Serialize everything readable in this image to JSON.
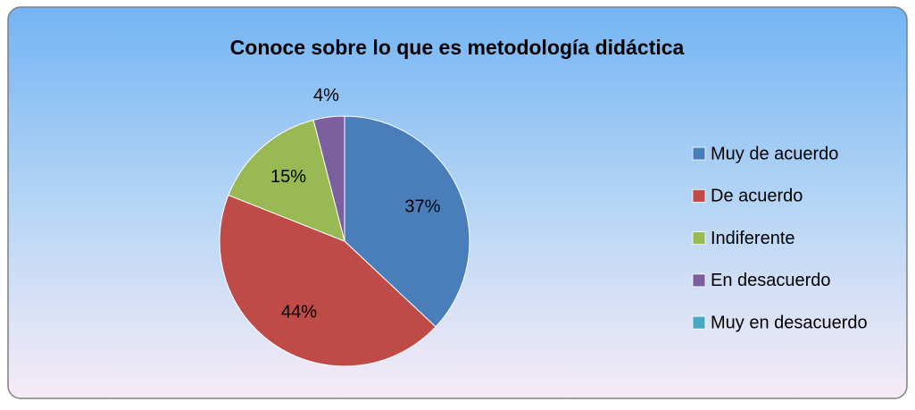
{
  "chart_data": {
    "type": "pie",
    "title": "Conoce sobre lo que es metodología didáctica",
    "categories": [
      "Muy de acuerdo",
      "De acuerdo",
      "Indiferente",
      "En desacuerdo",
      "Muy en desacuerdo"
    ],
    "values": [
      37,
      44,
      15,
      4,
      0
    ],
    "value_labels": [
      "37%",
      "44%",
      "15%",
      "4%",
      null
    ],
    "colors": [
      "#4a7ebb",
      "#be4b48",
      "#98b954",
      "#7d5fa0",
      "#46aac5"
    ],
    "legend": "right"
  }
}
